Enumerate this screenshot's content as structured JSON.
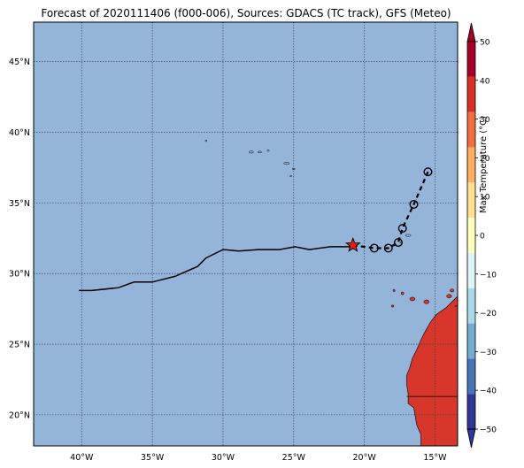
{
  "title": "Forecast of 2020111406 (f000-006), Sources: GDACS (TC track), GFS (Meteo)",
  "map": {
    "lon_ticks": [
      {
        "value": -40,
        "label": "40°W"
      },
      {
        "value": -35,
        "label": "35°W"
      },
      {
        "value": -30,
        "label": "30°W"
      },
      {
        "value": -25,
        "label": "25°W"
      },
      {
        "value": -20,
        "label": "20°W"
      },
      {
        "value": -15,
        "label": "15°W"
      }
    ],
    "lat_ticks": [
      {
        "value": 20,
        "label": "20°N"
      },
      {
        "value": 25,
        "label": "25°N"
      },
      {
        "value": 30,
        "label": "30°N"
      },
      {
        "value": 35,
        "label": "35°N"
      },
      {
        "value": 40,
        "label": "40°N"
      },
      {
        "value": 45,
        "label": "45°N"
      }
    ],
    "ocean_color": "#94b4da",
    "land_color": "#d7362a",
    "grid": "dotted",
    "past_track": [
      [
        -40.2,
        28.8
      ],
      [
        -39.3,
        28.8
      ],
      [
        -37.4,
        29.0
      ],
      [
        -36.3,
        29.4
      ],
      [
        -35.0,
        29.4
      ],
      [
        -33.4,
        29.8
      ],
      [
        -31.8,
        30.5
      ],
      [
        -31.2,
        31.1
      ],
      [
        -30.0,
        31.7
      ],
      [
        -28.9,
        31.6
      ],
      [
        -27.5,
        31.7
      ],
      [
        -26.0,
        31.7
      ],
      [
        -24.9,
        31.9
      ],
      [
        -23.9,
        31.7
      ],
      [
        -22.4,
        31.9
      ],
      [
        -21.0,
        31.9
      ],
      [
        -20.8,
        32.0
      ]
    ],
    "current_position": [
      -20.8,
      32.0
    ],
    "forecast_points": [
      [
        -19.3,
        31.8
      ],
      [
        -18.3,
        31.8
      ],
      [
        -17.6,
        32.2
      ],
      [
        -17.3,
        33.2
      ],
      [
        -16.5,
        34.9
      ],
      [
        -15.5,
        37.2
      ]
    ]
  },
  "colorbar": {
    "label": "Max Temperature (°C)",
    "ticks": [
      -50,
      -40,
      -30,
      -20,
      -10,
      0,
      10,
      20,
      30,
      40,
      50
    ],
    "tick_labels": [
      "−50",
      "−40",
      "−30",
      "−20",
      "−10",
      "0",
      "10",
      "20",
      "30",
      "40",
      "50"
    ],
    "colors": [
      "#313695",
      "#4575b4",
      "#74add1",
      "#abd9e9",
      "#e0f3f8",
      "#ffffbf",
      "#fee090",
      "#fdae61",
      "#f46d43",
      "#d73027",
      "#a50026"
    ],
    "extend": "both"
  }
}
